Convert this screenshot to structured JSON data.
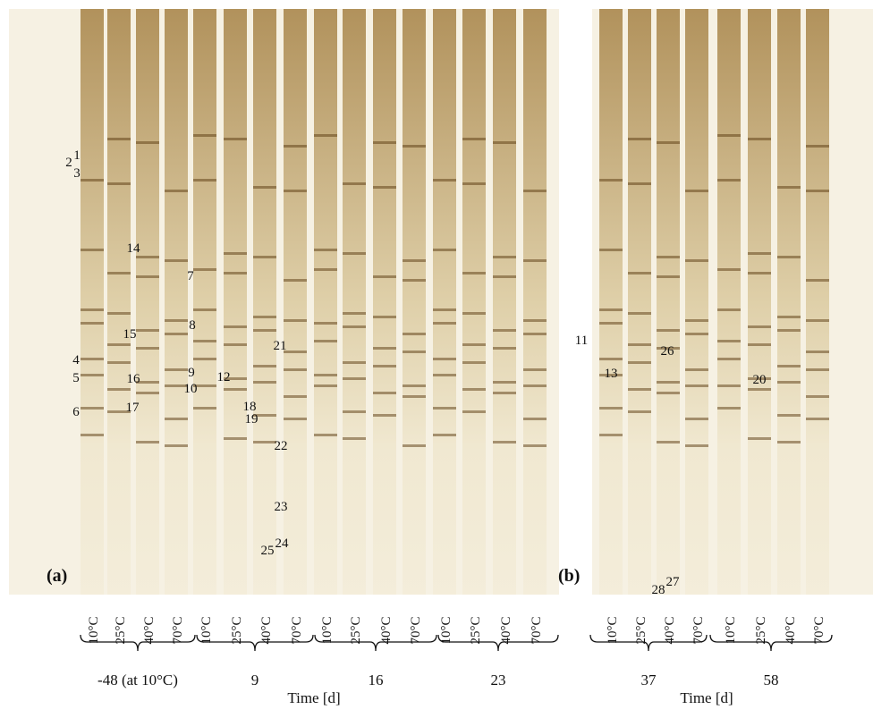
{
  "panel_a": {
    "tag": "(a)",
    "lanes": [
      "10°C",
      "25°C",
      "40°C",
      "70°C",
      "10°C",
      "25°C",
      "40°C",
      "70°C",
      "10°C",
      "25°C",
      "40°C",
      "70°C",
      "10°C",
      "25°C",
      "40°C",
      "70°C"
    ],
    "groups": [
      "-48 (at 10°C)",
      "9",
      "16",
      "23"
    ],
    "axis_label": "Time [d]",
    "bands": [
      "1",
      "2",
      "3",
      "14",
      "7",
      "15",
      "8",
      "21",
      "4",
      "5",
      "16",
      "9",
      "12",
      "10",
      "6",
      "17",
      "18",
      "19",
      "22",
      "23",
      "24",
      "25"
    ]
  },
  "panel_b": {
    "tag": "(b)",
    "lanes": [
      "10°C",
      "25°C",
      "40°C",
      "70°C",
      "10°C",
      "25°C",
      "40°C",
      "70°C"
    ],
    "groups": [
      "37",
      "58"
    ],
    "axis_label": "Time [d]",
    "bands": [
      "11",
      "13",
      "26",
      "20",
      "28",
      "27"
    ]
  }
}
